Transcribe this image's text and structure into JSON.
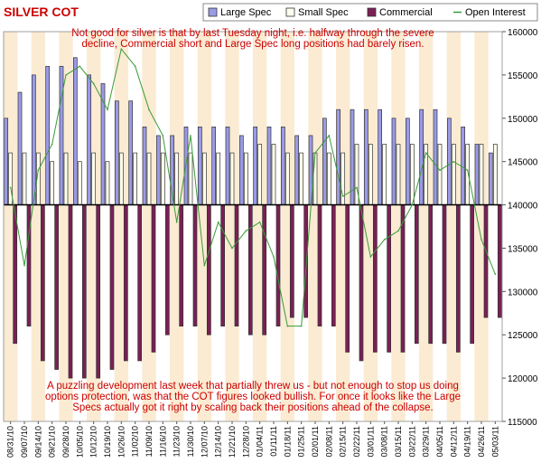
{
  "chart_data": {
    "type": "bar",
    "title": "SILVER COT",
    "legend": [
      {
        "label": "Large Spec",
        "color": "#9a9ae6",
        "kind": "bar"
      },
      {
        "label": "Small Spec",
        "color": "#ffffee",
        "kind": "bar"
      },
      {
        "label": "Commercial",
        "color": "#7a2055",
        "kind": "bar"
      },
      {
        "label": "Open Interest",
        "color": "#3a9a3a",
        "kind": "line"
      }
    ],
    "legend_placement": "top",
    "categories": [
      "08/31/10",
      "09/07/10",
      "09/14/10",
      "09/21/10",
      "09/28/10",
      "10/05/10",
      "10/12/10",
      "10/19/10",
      "10/26/10",
      "11/02/10",
      "11/09/10",
      "11/16/10",
      "11/23/10",
      "11/30/10",
      "12/07/10",
      "12/14/10",
      "12/21/10",
      "12/28/10",
      "01/04/11",
      "01/11/11",
      "01/18/11",
      "01/25/11",
      "02/01/11",
      "02/08/11",
      "02/15/11",
      "02/22/11",
      "03/01/11",
      "03/08/11",
      "03/15/11",
      "03/22/11",
      "03/29/11",
      "04/05/11",
      "04/12/11",
      "04/19/11",
      "04/26/11",
      "05/03/11"
    ],
    "series": [
      {
        "name": "Large Spec",
        "values": [
          150,
          153,
          155,
          156,
          156,
          157,
          155,
          154,
          152,
          152,
          149,
          148,
          148,
          149,
          149,
          149,
          149,
          148,
          149,
          149,
          149,
          148,
          148,
          150,
          151,
          151,
          151,
          151,
          150,
          150,
          151,
          151,
          150,
          149,
          147,
          146
        ]
      },
      {
        "name": "Small Spec",
        "values": [
          146,
          146,
          146,
          145,
          146,
          145,
          146,
          145,
          146,
          146,
          146,
          146,
          146,
          146,
          146,
          146,
          146,
          146,
          147,
          147,
          146,
          146,
          146,
          146,
          146,
          147,
          147,
          147,
          147,
          147,
          147,
          147,
          147,
          147,
          147,
          147
        ]
      },
      {
        "name": "Commercial",
        "values": [
          124,
          126,
          122,
          121,
          120,
          120,
          120,
          121,
          122,
          122,
          123,
          125,
          126,
          126,
          125,
          126,
          126,
          125,
          125,
          126,
          127,
          127,
          126,
          126,
          123,
          122,
          123,
          123,
          123,
          124,
          124,
          124,
          123,
          124,
          127,
          127
        ]
      },
      {
        "name": "Open Interest",
        "values": [
          142,
          133,
          144,
          147,
          155,
          156,
          154,
          151,
          158,
          156,
          151,
          148,
          138,
          148,
          133,
          138,
          135,
          137,
          138,
          134,
          126,
          126,
          146,
          148,
          141,
          142,
          134,
          136,
          137,
          140,
          146,
          144,
          145,
          144,
          136,
          132
        ]
      }
    ],
    "ylabel": "",
    "xlabel": "",
    "ylim": [
      115000,
      160000
    ],
    "y_ticks": [
      "115000",
      "120000",
      "125000",
      "130000",
      "135000",
      "140000",
      "145000",
      "150000",
      "155000",
      "160000"
    ],
    "y_axis_side": "right",
    "baseline": 140000,
    "grid": "vertical alternating bands",
    "annotations": [
      {
        "lines": [
          "Not good for silver is that by last Tuesday night, i.e. halfway through the severe",
          "decline, Commercial short and Large Spec long positions had barely risen."
        ],
        "placement": "top-center"
      },
      {
        "lines": [
          "A puzzling development last week that partially threw us - but not enough to stop us doing",
          "options protection, was that the COT figures looked bullish. For once it looks like the Large",
          "Specs actually got it right by scaling back their positions ahead of the collapse."
        ],
        "placement": "bottom-center"
      }
    ]
  },
  "colors": {
    "band": "#faebd2",
    "background": "#ffffff",
    "grid": "#a0a0a0"
  }
}
